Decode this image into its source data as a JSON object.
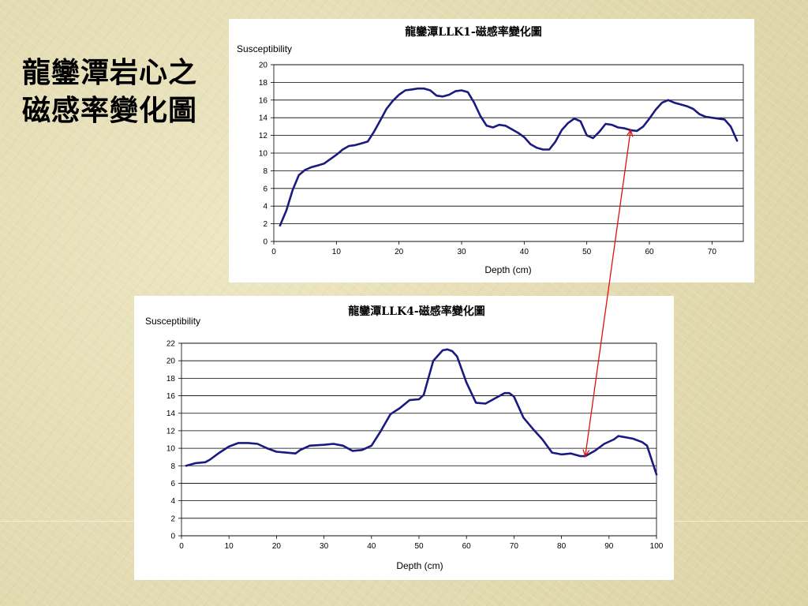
{
  "slide": {
    "title_line1": "龍鑾潭岩心之",
    "title_line2": "磁感率變化圖"
  },
  "colors": {
    "series": "#1a1a80",
    "connector": "#e01010",
    "grid": "#000000"
  },
  "chart_data": [
    {
      "type": "line",
      "title": "龍鑾潭LLK1-磁感率變化圖",
      "ylabel": "Susceptibility",
      "xlabel": "Depth (cm)",
      "xlim": [
        0,
        75
      ],
      "ylim": [
        0,
        20
      ],
      "xticks": [
        0,
        10,
        20,
        30,
        40,
        50,
        60,
        70
      ],
      "yticks": [
        0,
        2,
        4,
        6,
        8,
        10,
        12,
        14,
        16,
        18,
        20
      ],
      "grid": true,
      "series": [
        {
          "x": [
            1,
            2,
            3,
            4,
            5,
            6,
            7,
            8,
            9,
            10,
            11,
            12,
            13,
            14,
            15,
            16,
            17,
            18,
            19,
            20,
            21,
            22,
            23,
            24,
            25,
            26,
            27,
            28,
            29,
            30,
            31,
            32,
            33,
            34,
            35,
            36,
            37,
            38,
            39,
            40,
            41,
            42,
            43,
            44,
            45,
            46,
            47,
            48,
            49,
            50,
            51,
            52,
            53,
            54,
            55,
            56,
            57,
            58,
            59,
            60,
            61,
            62,
            63,
            64,
            65,
            66,
            67,
            68,
            69,
            70,
            71,
            72,
            73,
            74
          ],
          "y": [
            1.8,
            3.5,
            5.8,
            7.5,
            8.1,
            8.4,
            8.6,
            8.8,
            9.3,
            9.8,
            10.4,
            10.8,
            10.9,
            11.1,
            11.3,
            12.4,
            13.7,
            15.0,
            15.9,
            16.6,
            17.1,
            17.2,
            17.3,
            17.3,
            17.1,
            16.5,
            16.4,
            16.6,
            17.0,
            17.1,
            16.9,
            15.7,
            14.2,
            13.1,
            12.9,
            13.2,
            13.1,
            12.7,
            12.3,
            11.8,
            11.0,
            10.6,
            10.4,
            10.4,
            11.3,
            12.6,
            13.4,
            13.9,
            13.6,
            12.0,
            11.7,
            12.4,
            13.3,
            13.2,
            12.9,
            12.8,
            12.6,
            12.5,
            13.0,
            13.9,
            14.9,
            15.7,
            16.0,
            15.7,
            15.5,
            15.3,
            15.0,
            14.4,
            14.1,
            14.0,
            13.9,
            13.8,
            13.0,
            11.4
          ]
        }
      ]
    },
    {
      "type": "line",
      "title": "龍鑾潭LLK4-磁感率變化圖",
      "ylabel": "Susceptibility",
      "xlabel": "Depth (cm)",
      "xlim": [
        0,
        100
      ],
      "ylim": [
        0,
        22
      ],
      "xticks": [
        0,
        10,
        20,
        30,
        40,
        50,
        60,
        70,
        80,
        90,
        100
      ],
      "yticks": [
        0,
        2,
        4,
        6,
        8,
        10,
        12,
        14,
        16,
        18,
        20,
        22
      ],
      "grid": true,
      "series": [
        {
          "x": [
            1,
            3,
            5,
            6,
            8,
            10,
            12,
            14,
            16,
            18,
            20,
            22,
            24,
            25,
            27,
            30,
            32,
            34,
            36,
            38,
            40,
            42,
            44,
            46,
            48,
            50,
            51,
            53,
            55,
            56,
            57,
            58,
            60,
            62,
            64,
            66,
            68,
            69,
            70,
            72,
            74,
            76,
            78,
            80,
            82,
            84,
            85,
            87,
            89,
            91,
            92,
            93,
            95,
            97,
            98,
            100
          ],
          "y": [
            8.0,
            8.3,
            8.4,
            8.7,
            9.5,
            10.2,
            10.6,
            10.6,
            10.5,
            10.0,
            9.6,
            9.5,
            9.4,
            9.8,
            10.3,
            10.4,
            10.5,
            10.3,
            9.7,
            9.8,
            10.3,
            12.0,
            13.9,
            14.6,
            15.5,
            15.6,
            16.1,
            20.0,
            21.2,
            21.3,
            21.1,
            20.5,
            17.5,
            15.2,
            15.1,
            15.7,
            16.3,
            16.3,
            15.9,
            13.5,
            12.2,
            11.0,
            9.5,
            9.3,
            9.4,
            9.1,
            9.1,
            9.7,
            10.5,
            11.0,
            11.4,
            11.3,
            11.1,
            10.7,
            10.3,
            7.0
          ]
        }
      ]
    }
  ]
}
